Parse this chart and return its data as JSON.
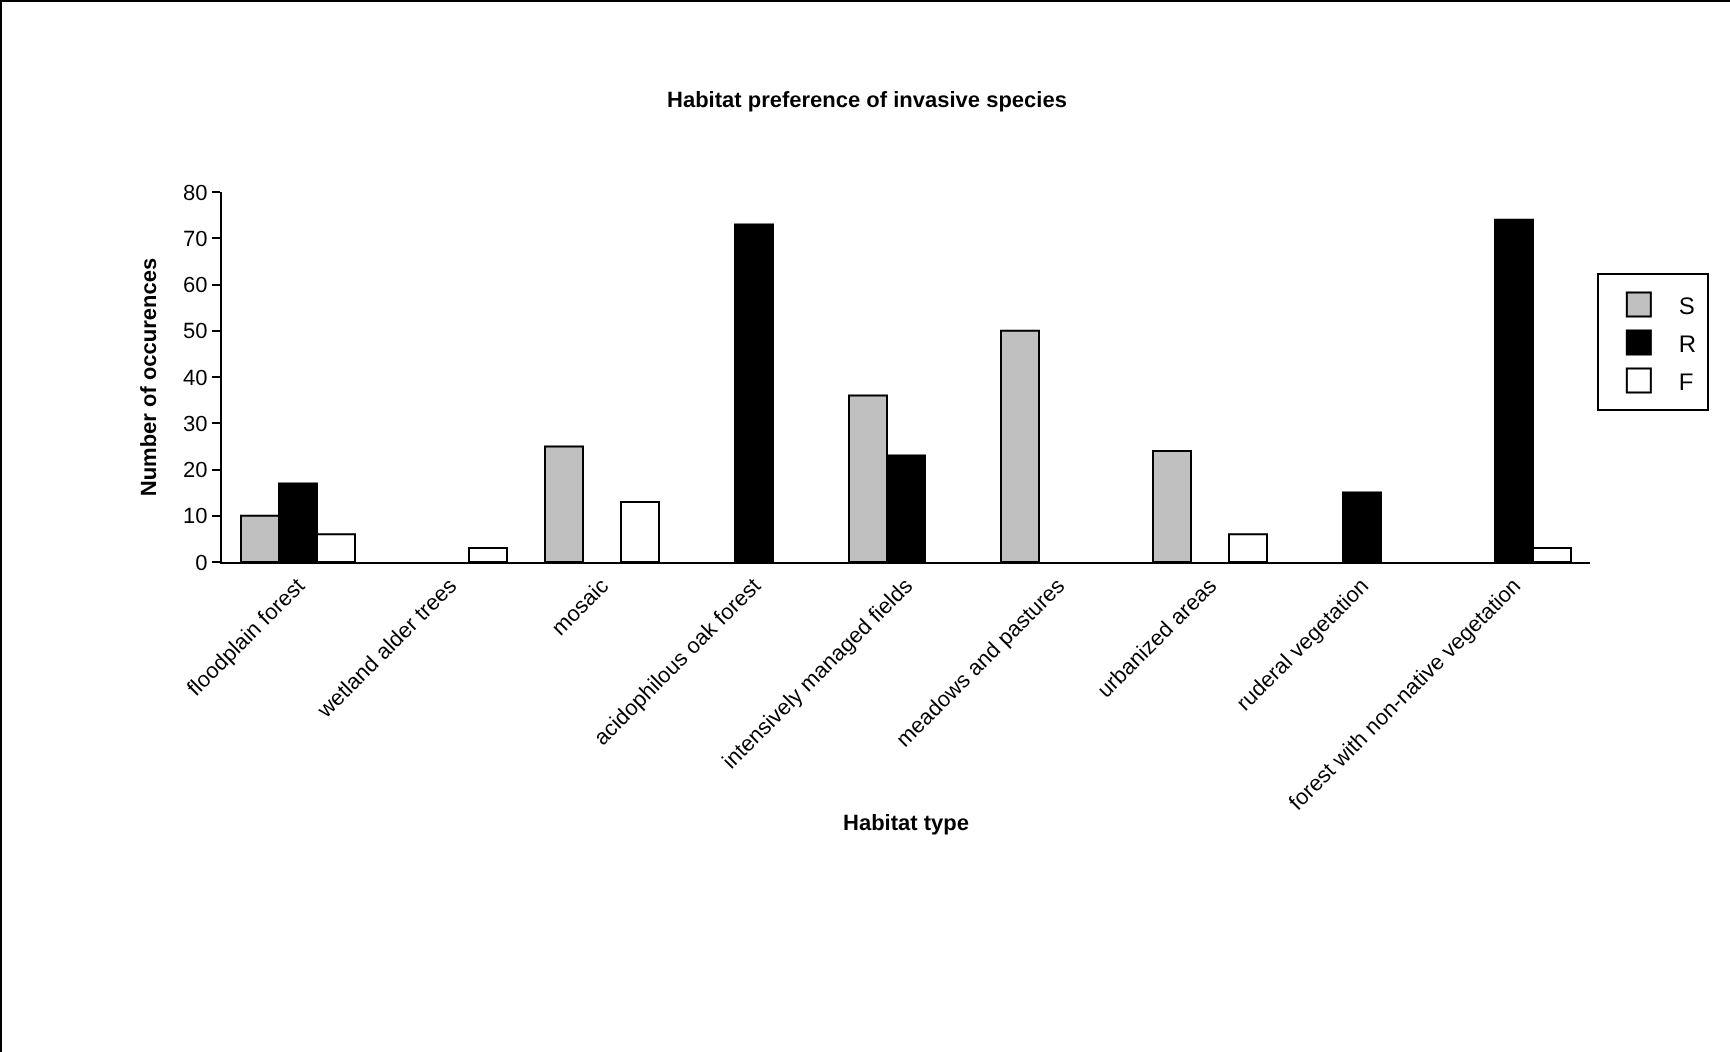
{
  "chart_data": {
    "type": "bar",
    "title": "Habitat preference of invasive species",
    "xlabel": "Habitat type",
    "ylabel": "Number of occurences",
    "categories": [
      "floodplain forest",
      "wetland alder trees",
      "mosaic",
      "acidophilous oak forest",
      "intensively managed fields",
      "meadows and pastures",
      "urbanized areas",
      "ruderal vegetation",
      "forest with non-native vegetation"
    ],
    "series": [
      {
        "name": "S",
        "color": "#c0c0c0",
        "values": [
          10,
          null,
          25,
          null,
          36,
          50,
          24,
          null,
          null
        ]
      },
      {
        "name": "R",
        "color": "#000000",
        "values": [
          17,
          null,
          null,
          73,
          23,
          null,
          null,
          15,
          74
        ]
      },
      {
        "name": "F",
        "color": "#ffffff",
        "values": [
          6,
          3,
          13,
          null,
          null,
          null,
          6,
          null,
          3
        ]
      }
    ],
    "ylim": [
      0,
      80
    ],
    "yticks": [
      0,
      10,
      20,
      30,
      40,
      50,
      60,
      70,
      80
    ],
    "grid": false,
    "legend": "right"
  }
}
